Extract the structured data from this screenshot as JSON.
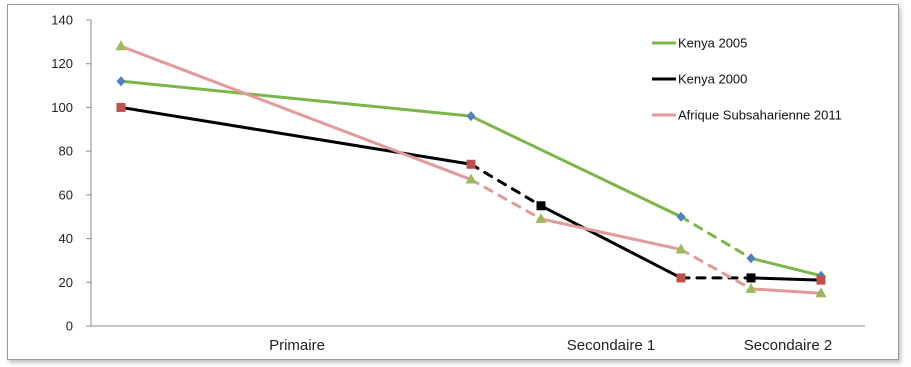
{
  "chart_data": {
    "type": "line",
    "title": "",
    "xlabel": "",
    "ylabel": "",
    "ylim": [
      0,
      140
    ],
    "yticks": [
      0,
      20,
      40,
      60,
      80,
      100,
      120,
      140
    ],
    "grid": false,
    "legend_position": "right",
    "categories": [
      "Primaire",
      "Secondaire 1",
      "Secondaire 2"
    ],
    "x_points": [
      "start",
      "Primaire end",
      "mid",
      "Secondaire 1 end",
      "Secondaire 2 start",
      "Secondaire 2 end"
    ],
    "series": [
      {
        "name": "Kenya 2005",
        "color": "#7ab648",
        "marker_color": "#4f81bd",
        "marker": "diamond",
        "points": [
          {
            "x": 0,
            "y": 112
          },
          {
            "x": 1,
            "y": 96
          },
          {
            "x": 3,
            "y": 50
          },
          {
            "x": 4,
            "y": 31
          },
          {
            "x": 5,
            "y": 23
          }
        ],
        "dashed_segments": [
          [
            3,
            4
          ]
        ]
      },
      {
        "name": "Kenya 2000",
        "color": "#000000",
        "marker_color": "#c0504d",
        "marker": "square",
        "points": [
          {
            "x": 0,
            "y": 100
          },
          {
            "x": 1,
            "y": 74
          },
          {
            "x": 2,
            "y": 55
          },
          {
            "x": 3,
            "y": 22
          },
          {
            "x": 4,
            "y": 22
          },
          {
            "x": 5,
            "y": 21
          }
        ],
        "dashed_segments": [
          [
            1,
            2
          ],
          [
            3,
            4
          ]
        ]
      },
      {
        "name": "Afrique Subsaharienne 2011",
        "color": "#e39a9a",
        "marker_color": "#9bbb59",
        "marker": "triangle",
        "points": [
          {
            "x": 0,
            "y": 128
          },
          {
            "x": 1,
            "y": 67
          },
          {
            "x": 2,
            "y": 49
          },
          {
            "x": 3,
            "y": 35
          },
          {
            "x": 4,
            "y": 17
          },
          {
            "x": 5,
            "y": 15
          }
        ],
        "dashed_segments": [
          [
            1,
            2
          ],
          [
            3,
            4
          ]
        ]
      }
    ]
  }
}
